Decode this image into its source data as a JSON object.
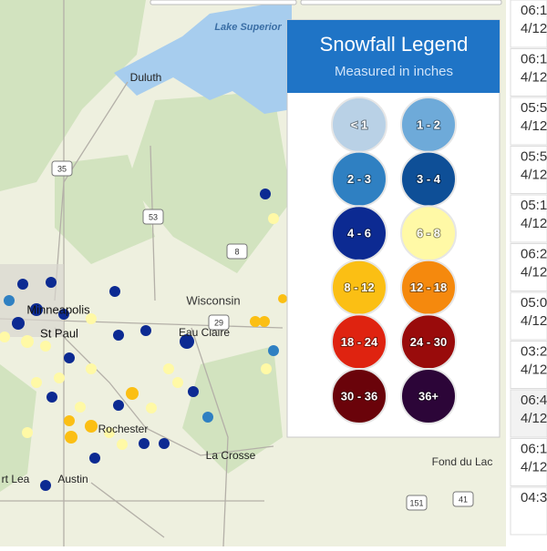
{
  "legend": {
    "title": "Snowfall Legend",
    "subtitle": "Measured in inches",
    "items": [
      {
        "label": "< 1",
        "color": "#b9d1e6"
      },
      {
        "label": "1 - 2",
        "color": "#6eaad9"
      },
      {
        "label": "2 - 3",
        "color": "#2f80c2"
      },
      {
        "label": "3 - 4",
        "color": "#0e4f97"
      },
      {
        "label": "4 - 6",
        "color": "#0c2a92"
      },
      {
        "label": "6 - 8",
        "color": "#fff9a6"
      },
      {
        "label": "8 - 12",
        "color": "#fbbf14"
      },
      {
        "label": "12 - 18",
        "color": "#f5890d"
      },
      {
        "label": "18 - 24",
        "color": "#df2310"
      },
      {
        "label": "24 - 30",
        "color": "#990b0b"
      },
      {
        "label": "30 - 36",
        "color": "#6a030a"
      },
      {
        "label": "36+",
        "color": "#2c0538"
      }
    ]
  },
  "map": {
    "labels": [
      "Lake Superior",
      "Duluth",
      "Minneapolis",
      "St Paul",
      "Wisconsin",
      "Eau Claire",
      "Rochester",
      "La Crosse",
      "Fond du Lac",
      "rt Lea",
      "Austin"
    ],
    "shields": [
      "35",
      "53",
      "8",
      "29",
      "151",
      "41"
    ]
  },
  "side_list": {
    "rows": [
      [
        "06:1",
        "4/12"
      ],
      [
        "06:1",
        "4/12"
      ],
      [
        "05:5",
        "4/12"
      ],
      [
        "05:5",
        "4/12"
      ],
      [
        "05:1",
        "4/12"
      ],
      [
        "06:2",
        "4/12"
      ],
      [
        "05:0",
        "4/12"
      ],
      [
        "03:2",
        "4/12"
      ],
      [
        "06:4",
        "4/12"
      ],
      [
        "06:1",
        "4/12"
      ],
      [
        "04:3",
        ""
      ]
    ]
  }
}
